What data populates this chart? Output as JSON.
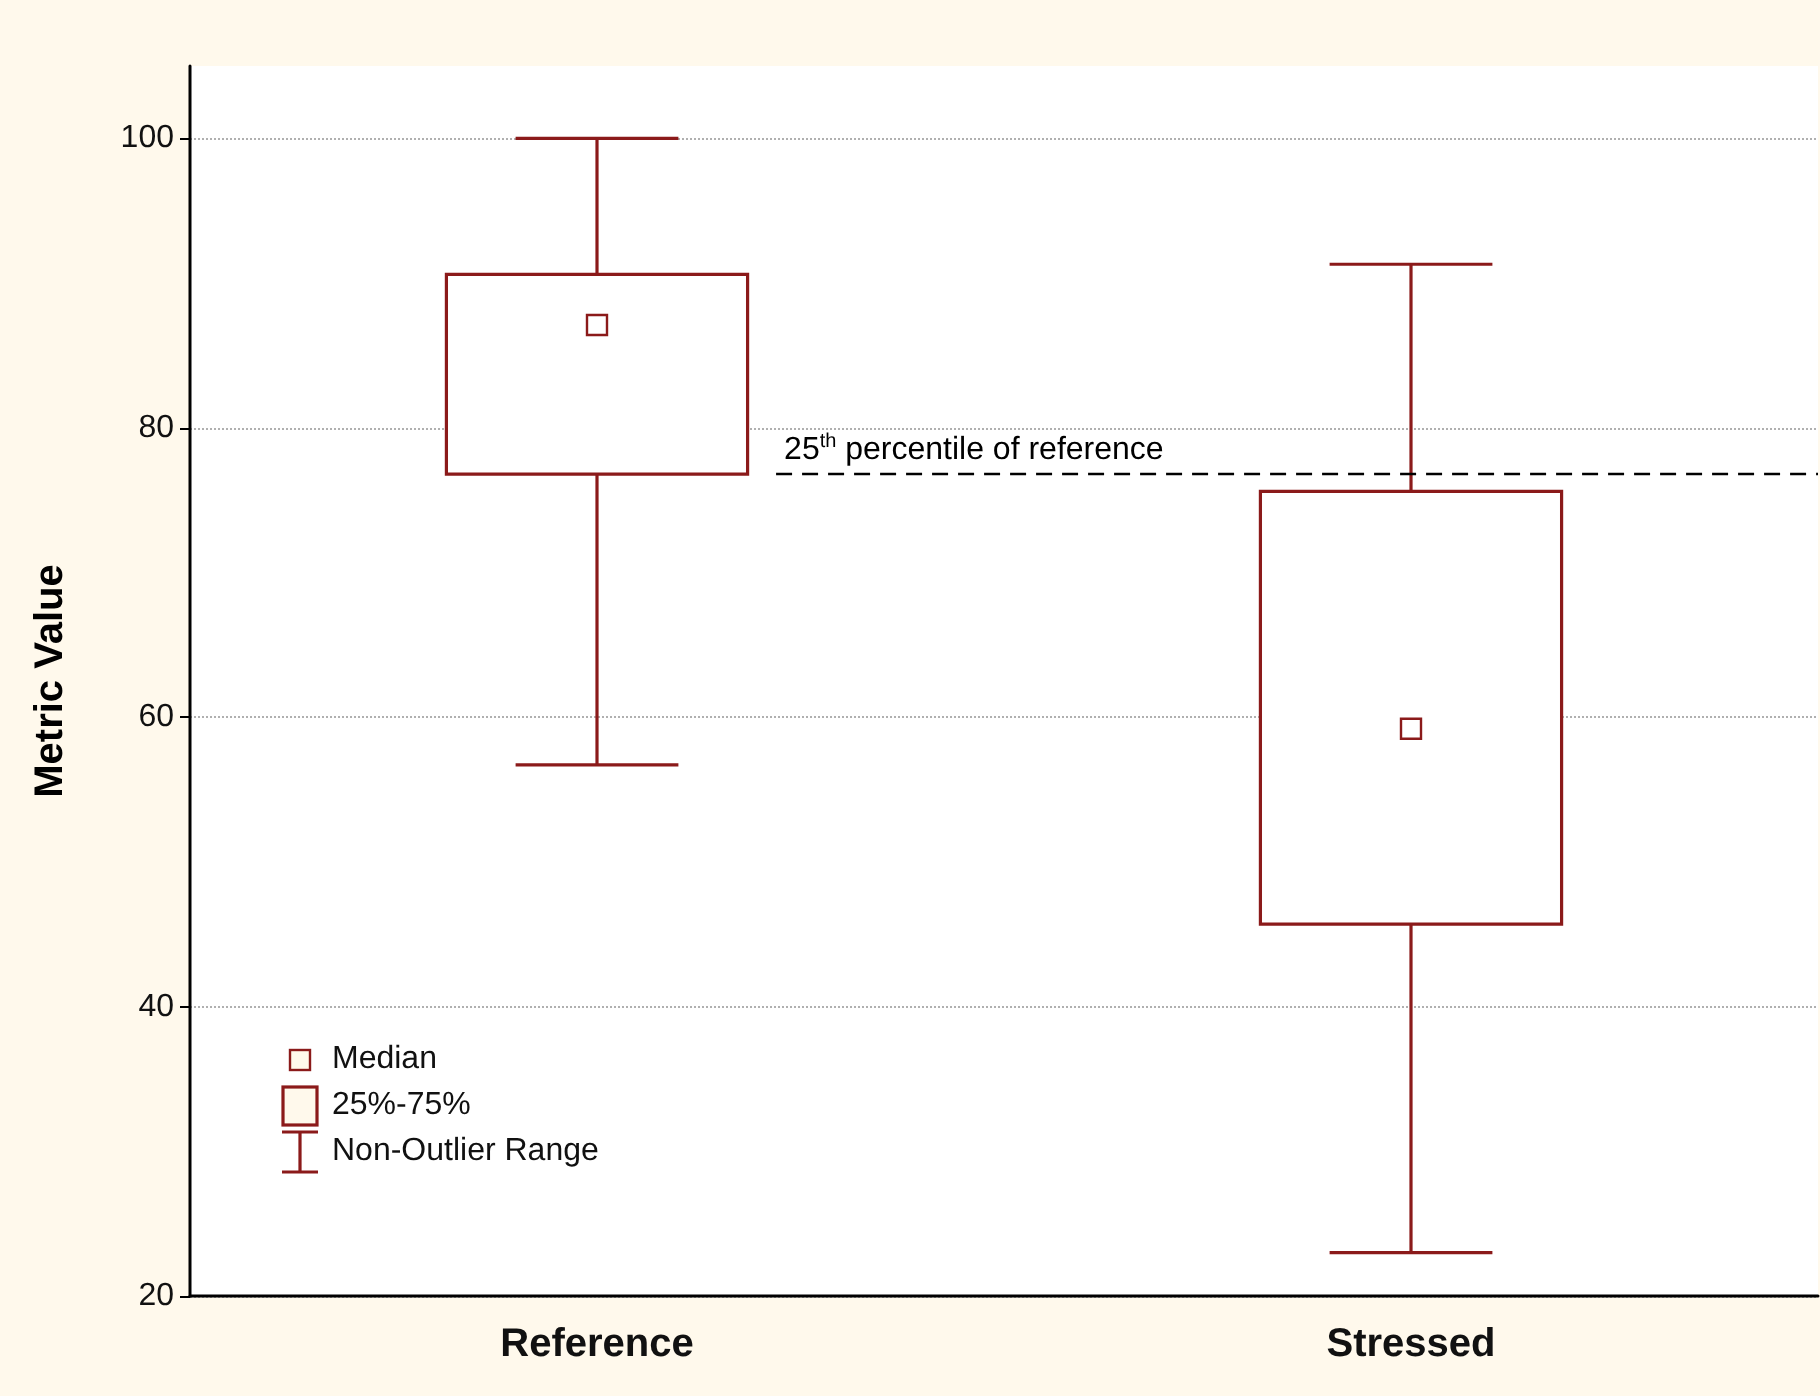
{
  "chart_data": {
    "type": "box",
    "ylabel": "Metric Value",
    "categories": [
      "Reference",
      "Stressed"
    ],
    "series": [
      {
        "color": "#8b1a1a",
        "boxes": [
          {
            "low": 56.7,
            "q1": 76.8,
            "median": 87.1,
            "q3": 90.6,
            "high": 100
          },
          {
            "low": 23.0,
            "q1": 45.7,
            "median": 59.2,
            "q3": 75.6,
            "high": 91.3
          }
        ]
      }
    ],
    "ylim": [
      20,
      105
    ],
    "yticks": [
      20,
      40,
      60,
      80,
      100
    ],
    "grid": "y",
    "marker": "square",
    "ref_lines": [
      {
        "axis": "y",
        "value": 76.8,
        "label": "25$^{th}$ percentile of reference",
        "color": "#000000",
        "line_style": "dashed"
      }
    ],
    "annotations": [
      "Median",
      "25%-75%",
      "Non-Outlier Range"
    ]
  }
}
